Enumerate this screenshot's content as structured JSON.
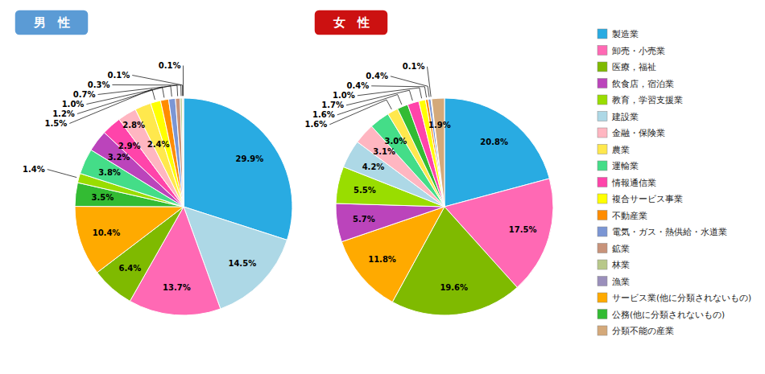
{
  "chart_data": [
    {
      "type": "pie",
      "title": "男　性",
      "color": "#5B9BD5",
      "data_labels": true,
      "values": [
        29.9,
        14.5,
        13.7,
        6.4,
        10.4,
        3.5,
        1.4,
        3.8,
        3.2,
        2.9,
        2.8,
        2.4,
        1.5,
        1.2,
        1.0,
        0.7,
        0.3,
        0.1,
        0.1
      ],
      "value_labels": [
        "29.9%",
        "14.5%",
        "13.7%",
        "6.4%",
        "10.4%",
        "3.5%",
        "1.4%",
        "3.8%",
        "3.2%",
        "2.9%",
        "2.8%",
        "2.4%",
        "1.5%",
        "1.2%",
        "1.0%",
        "0.7%",
        "0.3%",
        "0.1%",
        "0.1%"
      ],
      "colors": [
        "#29ABE2",
        "#ADD8E6",
        "#FF69B4",
        "#7FBA00",
        "#FFAA00",
        "#33BB33",
        "#99DD00",
        "#44DD88",
        "#BB44BB",
        "#FF44AA",
        "#FFB6C1",
        "#FFE84D",
        "#FFFF00",
        "#FF8C00",
        "#7B96D4",
        "#C8937A",
        "#B8C88A",
        "#9A8FBB",
        "#D4A97A"
      ]
    },
    {
      "type": "pie",
      "title": "女　性",
      "color": "#CC1111",
      "data_labels": true,
      "values": [
        20.8,
        17.5,
        19.6,
        11.8,
        5.7,
        5.5,
        4.2,
        3.1,
        3.0,
        1.6,
        1.6,
        1.7,
        1.0,
        0.4,
        0.4,
        0.1,
        0.0,
        0.0,
        1.9
      ],
      "value_labels": [
        "20.8%",
        "17.5%",
        "19.6%",
        "11.8%",
        "5.7%",
        "5.5%",
        "4.2%",
        "3.1%",
        "3.0%",
        "1.6%",
        "1.6%",
        "1.7%",
        "1.0%",
        "0.4%",
        "0.4%",
        "0.1%",
        null,
        null,
        "1.9%"
      ],
      "colors": [
        "#29ABE2",
        "#FF69B4",
        "#7FBA00",
        "#FFAA00",
        "#BB44BB",
        "#99DD00",
        "#ADD8E6",
        "#FFB6C1",
        "#44DD88",
        "#FFE84D",
        "#33BB33",
        "#FF44AA",
        "#FFFF00",
        "#FF8C00",
        "#7B96D4",
        "#C8937A",
        "#B8C88A",
        "#9A8FBB",
        "#D4A97A"
      ]
    },
    {
      "type": "legend",
      "categories": [
        "製造業",
        "卸売・小売業",
        "医療，福祉",
        "飲食店，宿泊業",
        "教育，学習支援業",
        "建設業",
        "金融・保険業",
        "農業",
        "運輸業",
        "情報通信業",
        "複合サービス事業",
        "不動産業",
        "電気・ガス・熱供給・水道業",
        "鉱業",
        "林業",
        "漁業",
        "サービス業(他に分類されないもの)",
        "公務(他に分類されないもの)",
        "分類不能の産業"
      ],
      "colors": [
        "#29ABE2",
        "#FF69B4",
        "#7FBA00",
        "#BB44BB",
        "#99DD00",
        "#ADD8E6",
        "#FFB6C1",
        "#FFE84D",
        "#44DD88",
        "#FF44AA",
        "#FFFF00",
        "#FF8C00",
        "#7B96D4",
        "#C8937A",
        "#B8C88A",
        "#9A8FBB",
        "#FFAA00",
        "#33BB33",
        "#D4A97A"
      ]
    }
  ]
}
